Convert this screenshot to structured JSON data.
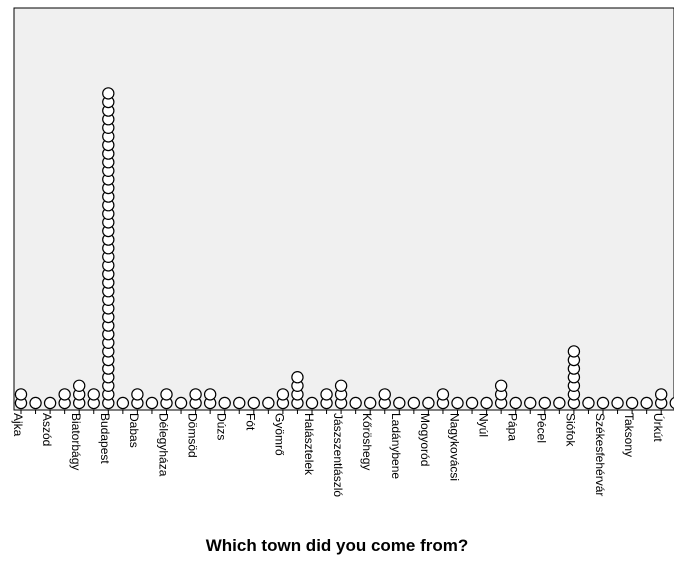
{
  "chart_data": {
    "type": "dot",
    "title": "",
    "xlabel": "Which town did you come from?",
    "ylabel": "",
    "legend": "none",
    "grid": false,
    "background_color": "#f0f0f0",
    "marker_color": "#ffffff",
    "marker_edge_color": "#000000",
    "categories": [
      "Ajka",
      "",
      "Aszód",
      "",
      "Biatorbágy",
      "",
      "Budapest",
      "",
      "Dabas",
      "",
      "Délegyháza",
      "",
      "Dömsöd",
      "",
      "Dúzs",
      "",
      "Fót",
      "",
      "Gyömrő",
      "",
      "Halásztelek",
      "",
      "Jászszentlászló",
      "",
      "Kőröshegy",
      "",
      "Ladánybene",
      "",
      "Mogyoród",
      "",
      "Nagykovácsi",
      "",
      "Nyúl",
      "",
      "Pápa",
      "",
      "Pécel",
      "",
      "Siófok",
      "",
      "Székesfehérvár",
      "",
      "Taksony",
      "",
      "Úrkút",
      ""
    ],
    "counts": [
      2,
      1,
      1,
      2,
      3,
      2,
      37,
      1,
      2,
      1,
      2,
      1,
      2,
      2,
      1,
      1,
      1,
      1,
      2,
      4,
      1,
      2,
      3,
      1,
      1,
      2,
      1,
      1,
      1,
      2,
      1,
      1,
      1,
      3,
      1,
      1,
      1,
      1,
      7,
      1,
      1,
      1,
      1,
      1,
      2,
      1
    ]
  }
}
